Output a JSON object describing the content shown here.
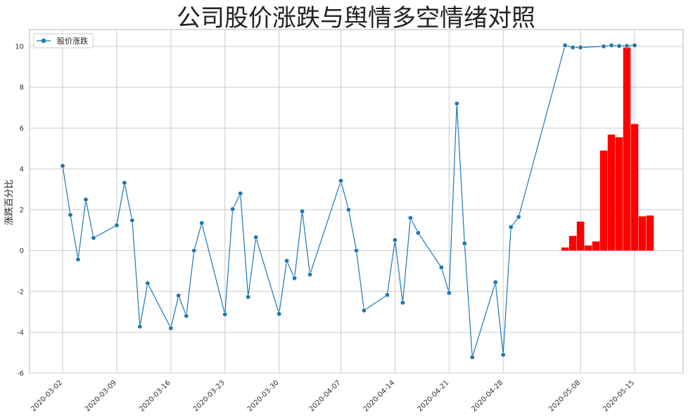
{
  "chart_data": {
    "type": "line",
    "title": "公司股价涨跌与舆情多空情绪对照",
    "xlabel": "",
    "ylabel": "涨跌百分比",
    "ylim": [
      -6,
      10.8
    ],
    "yticks": [
      -6,
      -4,
      -2,
      0,
      2,
      4,
      6,
      8,
      10
    ],
    "xticks": [
      "2020-03-02",
      "2020-03-09",
      "2020-03-16",
      "2020-03-23",
      "2020-03-30",
      "2020-04-07",
      "2020-04-14",
      "2020-04-21",
      "2020-04-28",
      "2020-05-08",
      "2020-05-15"
    ],
    "grid": true,
    "legend": {
      "position": "top-left",
      "entries": [
        "股价涨跌"
      ]
    },
    "colors": {
      "line": "#1f77b4",
      "bar": "#ff0000",
      "grid": "#cccccc",
      "axes": "#bbbbbb"
    },
    "series": [
      {
        "name": "股价涨跌",
        "kind": "line",
        "x": [
          "2020-03-02",
          "2020-03-03",
          "2020-03-04",
          "2020-03-05",
          "2020-03-06",
          "2020-03-09",
          "2020-03-10",
          "2020-03-11",
          "2020-03-12",
          "2020-03-13",
          "2020-03-16",
          "2020-03-17",
          "2020-03-18",
          "2020-03-19",
          "2020-03-20",
          "2020-03-23",
          "2020-03-24",
          "2020-03-25",
          "2020-03-26",
          "2020-03-27",
          "2020-03-30",
          "2020-03-31",
          "2020-04-01",
          "2020-04-02",
          "2020-04-03",
          "2020-04-07",
          "2020-04-08",
          "2020-04-09",
          "2020-04-10",
          "2020-04-13",
          "2020-04-14",
          "2020-04-15",
          "2020-04-16",
          "2020-04-17",
          "2020-04-20",
          "2020-04-21",
          "2020-04-22",
          "2020-04-23",
          "2020-04-24",
          "2020-04-27",
          "2020-04-28",
          "2020-04-29",
          "2020-04-30",
          "2020-05-06",
          "2020-05-07",
          "2020-05-08",
          "2020-05-11",
          "2020-05-12",
          "2020-05-13",
          "2020-05-14",
          "2020-05-15"
        ],
        "values": [
          4.15,
          1.75,
          -0.43,
          2.5,
          0.62,
          1.24,
          3.32,
          1.48,
          -3.72,
          -1.6,
          -3.8,
          -2.2,
          -3.2,
          0.0,
          1.35,
          -3.12,
          2.03,
          2.8,
          -2.27,
          0.65,
          -3.1,
          -0.5,
          -1.35,
          1.92,
          -1.17,
          3.42,
          2.0,
          0.0,
          -2.93,
          -2.17,
          0.52,
          -2.55,
          1.6,
          0.87,
          -0.82,
          -2.07,
          7.2,
          0.35,
          -5.22,
          -1.55,
          -5.1,
          1.15,
          1.65,
          10.05,
          9.95,
          9.95,
          10.0,
          10.05,
          10.02,
          10.03,
          10.05
        ]
      },
      {
        "name": "",
        "kind": "bar",
        "x": [
          "2020-05-06",
          "2020-05-07",
          "2020-05-08",
          "2020-05-09",
          "2020-05-10",
          "2020-05-11",
          "2020-05-12",
          "2020-05-13",
          "2020-05-14",
          "2020-05-15",
          "2020-05-16",
          "2020-05-17"
        ],
        "values": [
          0.15,
          0.72,
          1.42,
          0.25,
          0.45,
          4.9,
          5.68,
          5.55,
          9.95,
          6.2,
          1.68,
          1.72
        ]
      }
    ]
  }
}
